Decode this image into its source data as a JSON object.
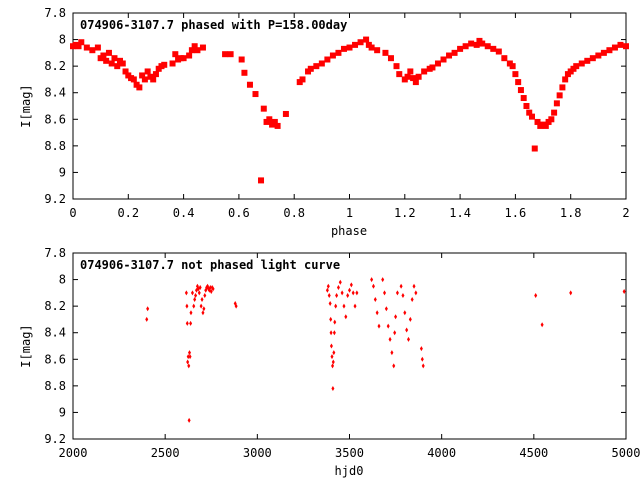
{
  "colors": {
    "points": "#ff0000",
    "axes": "#000000",
    "background": "#ffffff"
  },
  "chart_data": [
    {
      "type": "scatter",
      "title": "074906-3107.7 phased with P=158.00day",
      "xlabel": "phase",
      "ylabel": "I[mag]",
      "xlim": [
        0,
        2
      ],
      "ylim": [
        9.2,
        7.8
      ],
      "y_inverted": true,
      "grid": false,
      "marker": "filled-square",
      "xticks": [
        "0",
        "0.2",
        "0.4",
        "0.6",
        "0.8",
        "1",
        "1.2",
        "1.4",
        "1.6",
        "1.8",
        "2"
      ],
      "yticks": [
        "7.8",
        "8",
        "8.2",
        "8.4",
        "8.6",
        "8.8",
        "9",
        "9.2"
      ],
      "series": [
        {
          "x": [
            0.0,
            0.01,
            0.02,
            0.03,
            0.05,
            0.07,
            0.09,
            0.1,
            0.11,
            0.12,
            0.13,
            0.14,
            0.15,
            0.16,
            0.17,
            0.18,
            0.19,
            0.2,
            0.21,
            0.22,
            0.23,
            0.24,
            0.25,
            0.26,
            0.27,
            0.28,
            0.29,
            0.3,
            0.31,
            0.32,
            0.33,
            0.36,
            0.37,
            0.38,
            0.39,
            0.4,
            0.42,
            0.43,
            0.44,
            0.45,
            0.47,
            0.55,
            0.57,
            0.61,
            0.62,
            0.64,
            0.66,
            0.68,
            0.69,
            0.7,
            0.71,
            0.72,
            0.73,
            0.74,
            0.77,
            0.82,
            0.83,
            0.85,
            0.86,
            0.88,
            0.9,
            0.92,
            0.94,
            0.96,
            0.98,
            1.0,
            1.02,
            1.04,
            1.06,
            1.07,
            1.08,
            1.1,
            1.13,
            1.15,
            1.17,
            1.18,
            1.2,
            1.21,
            1.22,
            1.23,
            1.24,
            1.25,
            1.27,
            1.29,
            1.3,
            1.32,
            1.34,
            1.36,
            1.38,
            1.4,
            1.42,
            1.44,
            1.46,
            1.47,
            1.48,
            1.5,
            1.52,
            1.54,
            1.56,
            1.58,
            1.59,
            1.6,
            1.61,
            1.62,
            1.63,
            1.64,
            1.65,
            1.66,
            1.67,
            1.68,
            1.69,
            1.7,
            1.71,
            1.72,
            1.73,
            1.74,
            1.75,
            1.76,
            1.77,
            1.78,
            1.79,
            1.8,
            1.81,
            1.82,
            1.84,
            1.86,
            1.88,
            1.9,
            1.92,
            1.94,
            1.96,
            1.98,
            2.0
          ],
          "y": [
            8.05,
            8.04,
            8.05,
            8.02,
            8.06,
            8.08,
            8.06,
            8.14,
            8.12,
            8.16,
            8.1,
            8.18,
            8.14,
            8.2,
            8.16,
            8.18,
            8.24,
            8.27,
            8.29,
            8.3,
            8.34,
            8.36,
            8.27,
            8.3,
            8.24,
            8.28,
            8.3,
            8.26,
            8.22,
            8.2,
            8.19,
            8.18,
            8.11,
            8.15,
            8.14,
            8.14,
            8.12,
            8.08,
            8.05,
            8.08,
            8.06,
            8.11,
            8.11,
            8.15,
            8.25,
            8.34,
            8.41,
            9.06,
            8.52,
            8.62,
            8.6,
            8.64,
            8.62,
            8.65,
            8.56,
            8.32,
            8.3,
            8.24,
            8.22,
            8.2,
            8.18,
            8.15,
            8.12,
            8.1,
            8.07,
            8.06,
            8.04,
            8.02,
            8.0,
            8.04,
            8.06,
            8.08,
            8.1,
            8.14,
            8.2,
            8.26,
            8.3,
            8.28,
            8.24,
            8.29,
            8.32,
            8.28,
            8.24,
            8.22,
            8.21,
            8.18,
            8.15,
            8.12,
            8.1,
            8.07,
            8.05,
            8.03,
            8.04,
            8.01,
            8.03,
            8.05,
            8.07,
            8.09,
            8.14,
            8.18,
            8.2,
            8.26,
            8.32,
            8.38,
            8.44,
            8.5,
            8.55,
            8.58,
            8.82,
            8.62,
            8.65,
            8.64,
            8.65,
            8.62,
            8.6,
            8.55,
            8.48,
            8.42,
            8.36,
            8.3,
            8.26,
            8.24,
            8.22,
            8.2,
            8.18,
            8.16,
            8.14,
            8.12,
            8.1,
            8.08,
            8.06,
            8.04,
            8.05
          ]
        }
      ]
    },
    {
      "type": "scatter",
      "title": "074906-3107.7 not phased light curve",
      "xlabel": "hjd0",
      "ylabel": "I[mag]",
      "xlim": [
        2000,
        5000
      ],
      "ylim": [
        9.2,
        7.8
      ],
      "y_inverted": true,
      "grid": false,
      "marker": "small-diamond",
      "xticks": [
        "2000",
        "2500",
        "3000",
        "3500",
        "4000",
        "4500",
        "5000"
      ],
      "yticks": [
        "7.8",
        "8",
        "8.2",
        "8.4",
        "8.6",
        "8.8",
        "9",
        "9.2"
      ],
      "series": [
        {
          "x": [
            2400,
            2405,
            2615,
            2618,
            2620,
            2622,
            2625,
            2628,
            2630,
            2632,
            2635,
            2638,
            2640,
            2648,
            2655,
            2660,
            2665,
            2670,
            2675,
            2680,
            2685,
            2690,
            2695,
            2700,
            2705,
            2710,
            2715,
            2720,
            2725,
            2730,
            2735,
            2740,
            2745,
            2750,
            2755,
            2760,
            2880,
            2885,
            3380,
            3385,
            3390,
            3395,
            3398,
            3400,
            3402,
            3405,
            3408,
            3410,
            3412,
            3415,
            3418,
            3420,
            3425,
            3430,
            3440,
            3450,
            3460,
            3470,
            3480,
            3490,
            3500,
            3510,
            3520,
            3530,
            3540,
            3620,
            3630,
            3640,
            3650,
            3660,
            3680,
            3690,
            3700,
            3710,
            3720,
            3730,
            3740,
            3745,
            3750,
            3760,
            3780,
            3790,
            3800,
            3810,
            3820,
            3830,
            3840,
            3850,
            3860,
            3890,
            3895,
            3900,
            4510,
            4545,
            4700,
            4990
          ],
          "y": [
            8.3,
            8.22,
            8.1,
            8.2,
            8.33,
            8.62,
            8.58,
            8.65,
            9.06,
            8.55,
            8.58,
            8.33,
            8.25,
            8.1,
            8.2,
            8.15,
            8.12,
            8.08,
            8.05,
            8.07,
            8.1,
            8.06,
            8.2,
            8.15,
            8.25,
            8.22,
            8.12,
            8.08,
            8.06,
            8.05,
            8.07,
            8.08,
            8.06,
            8.09,
            8.06,
            8.07,
            8.18,
            8.2,
            8.08,
            8.05,
            8.12,
            8.18,
            8.3,
            8.4,
            8.5,
            8.58,
            8.65,
            8.82,
            8.62,
            8.55,
            8.4,
            8.32,
            8.2,
            8.12,
            8.06,
            8.02,
            8.1,
            8.2,
            8.28,
            8.12,
            8.08,
            8.04,
            8.1,
            8.2,
            8.1,
            8.0,
            8.05,
            8.15,
            8.25,
            8.35,
            8.0,
            8.1,
            8.22,
            8.35,
            8.45,
            8.55,
            8.65,
            8.4,
            8.28,
            8.1,
            8.05,
            8.12,
            8.25,
            8.38,
            8.45,
            8.3,
            8.15,
            8.05,
            8.1,
            8.52,
            8.6,
            8.65,
            8.12,
            8.34,
            8.1,
            8.09
          ]
        }
      ]
    }
  ]
}
